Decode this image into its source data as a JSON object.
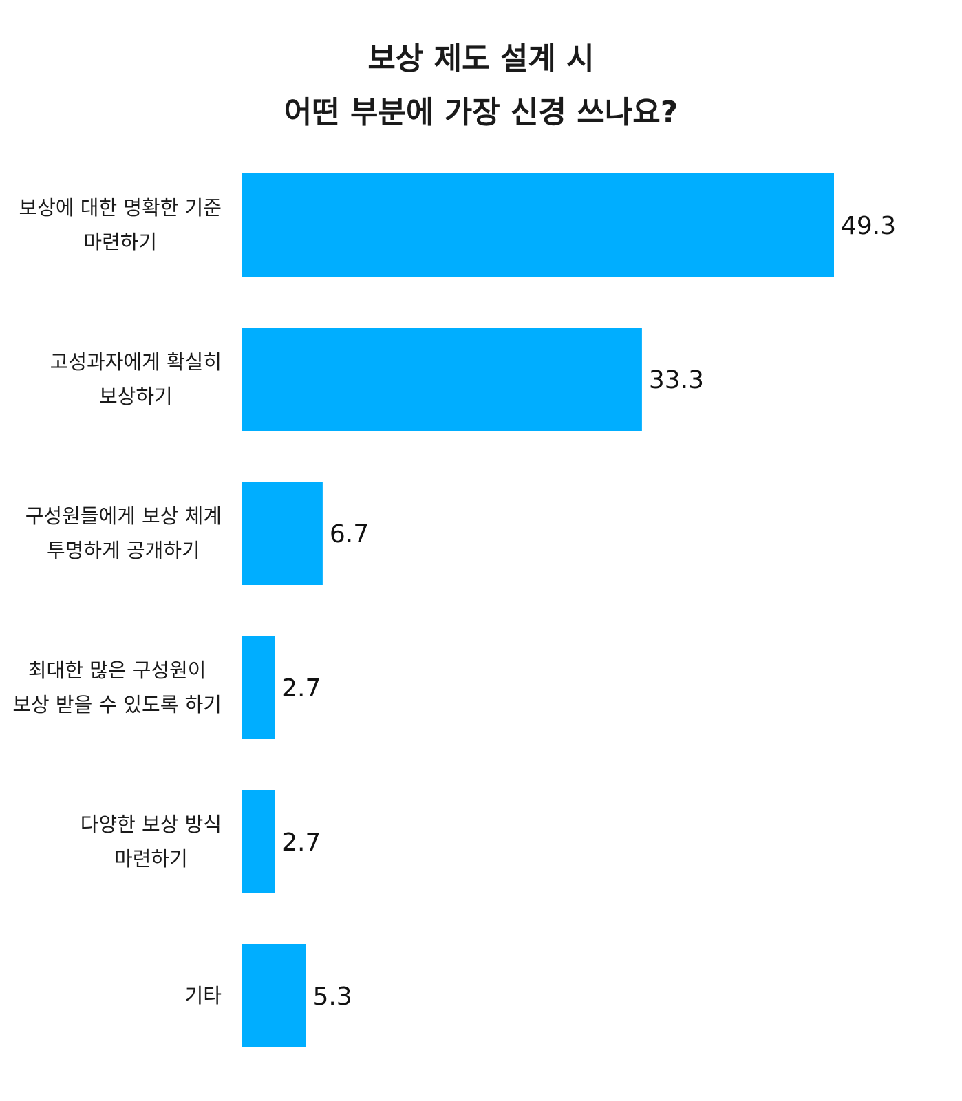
{
  "chart_data": {
    "type": "bar",
    "orientation": "horizontal",
    "title": [
      "보상 제도 설계 시",
      "어떤 부분에 가장 신경 쓰나요?"
    ],
    "categories": [
      [
        "보상에 대한 명확한 기준",
        "마련하기"
      ],
      [
        "고성과자에게 확실히",
        "보상하기"
      ],
      [
        "구성원들에게 보상 체계",
        "투명하게 공개하기"
      ],
      [
        "최대한 많은 구성원이",
        "보상 받을 수 있도록 하기"
      ],
      [
        "다양한 보상 방식",
        "마련하기"
      ],
      [
        "기타"
      ]
    ],
    "values": [
      49.3,
      33.3,
      6.7,
      2.7,
      2.7,
      5.3
    ],
    "value_labels": [
      "49.3",
      "33.3",
      "6.7",
      "2.7",
      "2.7",
      "5.3"
    ],
    "xlim": [
      0,
      49.3
    ],
    "grid": false,
    "legend": "none",
    "bar_color": "#00aeff"
  }
}
